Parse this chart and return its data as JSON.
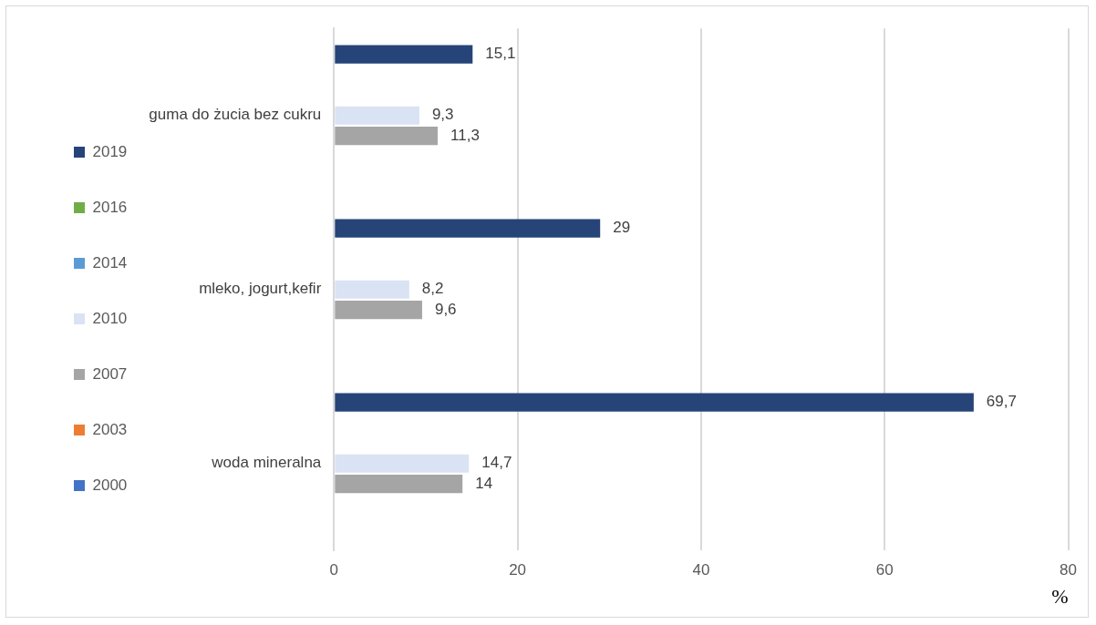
{
  "chart_data": {
    "type": "bar",
    "orientation": "horizontal",
    "categories": [
      "guma do żucia bez cukru",
      "mleko, jogurt,kefir",
      "woda mineralna"
    ],
    "series": [
      {
        "name": "2019",
        "color": "#264478",
        "values": [
          15.1,
          29,
          69.7
        ],
        "value_labels": [
          "15,1",
          "29",
          "69,7"
        ]
      },
      {
        "name": "2016",
        "color": "#70ad47",
        "values": [
          null,
          null,
          null
        ]
      },
      {
        "name": "2014",
        "color": "#5b9bd5",
        "values": [
          null,
          null,
          null
        ]
      },
      {
        "name": "2010",
        "color": "#dae3f3",
        "values": [
          9.3,
          8.2,
          14.7
        ],
        "value_labels": [
          "9,3",
          "8,2",
          "14,7"
        ]
      },
      {
        "name": "2007",
        "color": "#a5a5a5",
        "values": [
          11.3,
          9.6,
          14
        ],
        "value_labels": [
          "11,3",
          "9,6",
          "14"
        ]
      },
      {
        "name": "2003",
        "color": "#ed7d31",
        "values": [
          null,
          null,
          null
        ]
      },
      {
        "name": "2000",
        "color": "#4472c4",
        "values": [
          null,
          null,
          null
        ]
      }
    ],
    "xlim": [
      0,
      80
    ],
    "xticks": [
      0,
      20,
      40,
      60,
      80
    ],
    "xlabel": "%",
    "grid": "x",
    "legend": "left"
  }
}
